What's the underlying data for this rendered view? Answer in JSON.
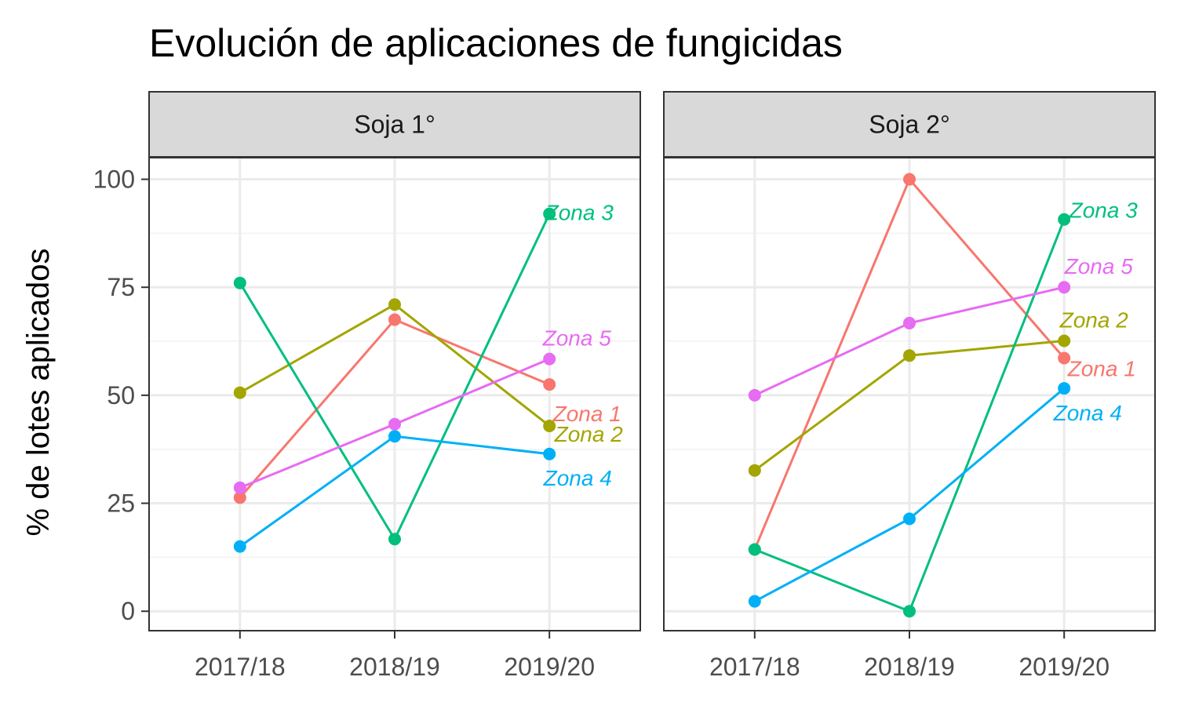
{
  "chart_data": {
    "type": "line",
    "title": "Evolución de aplicaciones de fungicidas",
    "ylabel": "% de lotes aplicados",
    "xlabel": "",
    "ylim": [
      -4.5,
      105
    ],
    "yticks": [
      0,
      25,
      50,
      75,
      100
    ],
    "categories": [
      "2017/18",
      "2018/19",
      "2019/20"
    ],
    "legend": "none (direct labels at last point)",
    "grid": true,
    "colors": {
      "Zona 1": "#F8766D",
      "Zona 2": "#A3A500",
      "Zona 3": "#00BF7D",
      "Zona 4": "#00B0F6",
      "Zona 5": "#E76BF3"
    },
    "panels": [
      {
        "name": "Soja 1°",
        "series": [
          {
            "name": "Zona 1",
            "values": [
              26.3,
              67.5,
              52.5
            ]
          },
          {
            "name": "Zona 2",
            "values": [
              50.6,
              71.0,
              42.9
            ]
          },
          {
            "name": "Zona 3",
            "values": [
              76.0,
              16.7,
              92.0
            ]
          },
          {
            "name": "Zona 4",
            "values": [
              15.0,
              40.5,
              36.4
            ]
          },
          {
            "name": "Zona 5",
            "values": [
              28.6,
              43.3,
              58.4
            ]
          }
        ]
      },
      {
        "name": "Soja 2°",
        "series": [
          {
            "name": "Zona 1",
            "values": [
              14.3,
              100.0,
              58.6
            ]
          },
          {
            "name": "Zona 2",
            "values": [
              32.6,
              59.2,
              62.6
            ]
          },
          {
            "name": "Zona 3",
            "values": [
              14.3,
              0.0,
              90.7
            ]
          },
          {
            "name": "Zona 4",
            "values": [
              2.3,
              21.4,
              51.6
            ]
          },
          {
            "name": "Zona 5",
            "values": [
              50.0,
              66.7,
              75.0
            ]
          }
        ]
      }
    ]
  }
}
